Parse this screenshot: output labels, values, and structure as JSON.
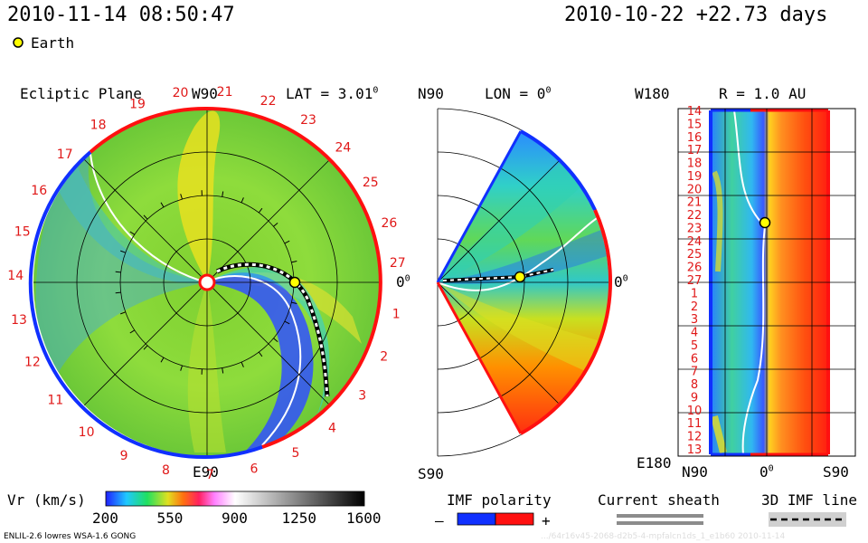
{
  "header": {
    "datetime": "2010-11-14 08:50:47",
    "reference": "2010-10-22 +22.73 days",
    "earth_label": "Earth"
  },
  "ecliptic": {
    "title": "Ecliptic Plane",
    "lat_label": "LAT = 3.01",
    "lat_sup": "0",
    "top_label": "W90",
    "bottom_label": "E90",
    "right_label": "0",
    "right_sup": "0",
    "day_ticks": [
      "1",
      "2",
      "3",
      "4",
      "5",
      "6",
      "7",
      "8",
      "9",
      "10",
      "11",
      "12",
      "13",
      "14",
      "15",
      "16",
      "17",
      "18",
      "19",
      "20",
      "21",
      "22",
      "23",
      "24",
      "25",
      "26",
      "27"
    ]
  },
  "meridional": {
    "top_label": "N90",
    "bottom_label": "S90",
    "lon_label": "LON = 0",
    "lon_sup": "0",
    "right_label": "0",
    "right_sup": "0"
  },
  "radial": {
    "title": "R = 1.0 AU",
    "top_left": "W180",
    "bottom_left": "E180",
    "x_left": "N90",
    "x_mid": "0",
    "x_mid_sup": "0",
    "x_right": "S90",
    "day_ticks": [
      "14",
      "15",
      "16",
      "17",
      "18",
      "19",
      "20",
      "21",
      "22",
      "23",
      "24",
      "25",
      "26",
      "27",
      "1",
      "2",
      "3",
      "4",
      "5",
      "6",
      "7",
      "8",
      "9",
      "10",
      "11",
      "12",
      "13"
    ]
  },
  "colorbar": {
    "label": "Vr (km/s)",
    "ticks": [
      "200",
      "550",
      "900",
      "1250",
      "1600"
    ]
  },
  "legend": {
    "imf_title": "IMF polarity",
    "minus": "–",
    "plus": "+",
    "sheath_title": "Current sheath",
    "imf3d_title": "3D IMF line"
  },
  "footer": {
    "model": "ENLIL-2.6 lowres WSA-1.6 GONG",
    "watermark": ".../64r16v45-2068-d2b5-4-mpfalcn1ds_1_e1b60   2010-11-14"
  },
  "colors": {
    "positive": "#ff1010",
    "negative": "#1030ff",
    "earth": "#ffff00"
  }
}
